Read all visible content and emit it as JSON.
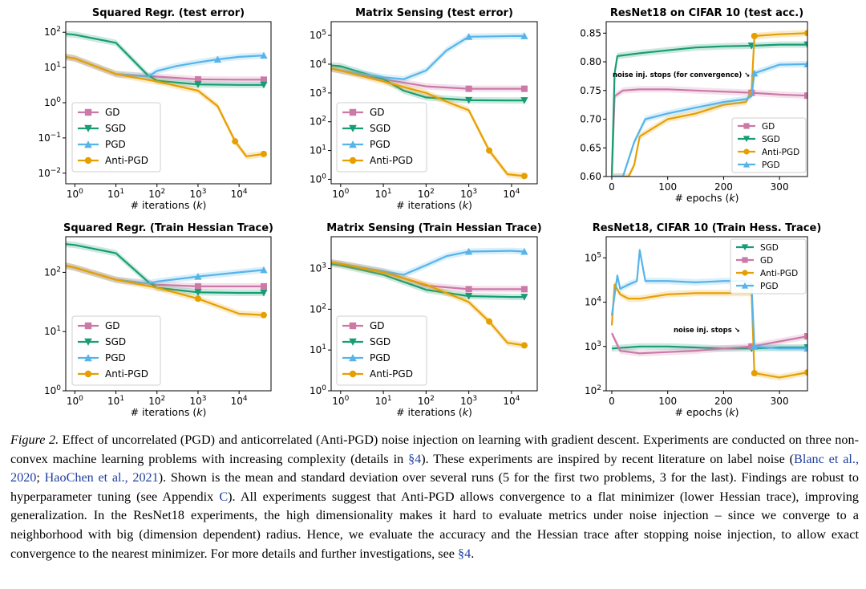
{
  "colors": {
    "GD": "#cc79a7",
    "SGD": "#179c73",
    "PGD": "#56b4e9",
    "Anti-PGD": "#e69f00"
  },
  "legend_labels": {
    "GD": "GD",
    "SGD": "SGD",
    "PGD": "PGD",
    "Anti-PGD": "Anti-PGD"
  },
  "chart_data": [
    {
      "id": "p1",
      "type": "line",
      "title": "Squared Regr. (test error)",
      "xlabel": "# iterations (k)",
      "yscale": "log",
      "xscale": "log",
      "xlim": [
        0.6,
        60000
      ],
      "ylim": [
        0.005,
        200
      ],
      "xticks": [
        "10^0",
        "10^1",
        "10^2",
        "10^3",
        "10^4"
      ],
      "yticks": [
        "10^-2",
        "10^-1",
        "10^0",
        "10^1",
        "10^2"
      ],
      "legend": [
        "GD",
        "SGD",
        "PGD",
        "Anti-PGD"
      ],
      "legend_pos": "lower-left",
      "series": [
        {
          "name": "GD",
          "x": [
            0.6,
            1,
            10,
            100,
            1000,
            10000,
            40000
          ],
          "y": [
            20,
            18,
            6.5,
            5.5,
            4.6,
            4.5,
            4.5
          ]
        },
        {
          "name": "SGD",
          "x": [
            0.6,
            1,
            10,
            60,
            100,
            1000,
            10000,
            40000
          ],
          "y": [
            90,
            85,
            50,
            6,
            4.2,
            3.3,
            3.2,
            3.2
          ]
        },
        {
          "name": "PGD",
          "x": [
            0.6,
            1,
            10,
            60,
            100,
            300,
            1000,
            3000,
            10000,
            40000
          ],
          "y": [
            20,
            18,
            6.5,
            5.5,
            8,
            11,
            14,
            17,
            20,
            22
          ]
        },
        {
          "name": "Anti-PGD",
          "x": [
            0.6,
            1,
            10,
            100,
            1000,
            3000,
            8000,
            15000,
            40000
          ],
          "y": [
            20,
            18,
            6.5,
            4,
            2.2,
            0.8,
            0.08,
            0.03,
            0.035
          ]
        }
      ]
    },
    {
      "id": "p2",
      "type": "line",
      "title": "Matrix Sensing (test error)",
      "xlabel": "# iterations (k)",
      "yscale": "log",
      "xscale": "log",
      "xlim": [
        0.6,
        40000
      ],
      "ylim": [
        0.7,
        300000
      ],
      "xticks": [
        "10^0",
        "10^1",
        "10^2",
        "10^3",
        "10^4"
      ],
      "yticks": [
        "10^0",
        "10^1",
        "10^2",
        "10^3",
        "10^4",
        "10^5"
      ],
      "legend": [
        "GD",
        "SGD",
        "PGD",
        "Anti-PGD"
      ],
      "legend_pos": "lower-left",
      "series": [
        {
          "name": "GD",
          "x": [
            0.6,
            1,
            10,
            100,
            1000,
            10000,
            20000
          ],
          "y": [
            7000,
            6000,
            3000,
            1700,
            1400,
            1400,
            1400
          ]
        },
        {
          "name": "SGD",
          "x": [
            0.6,
            1,
            10,
            30,
            100,
            1000,
            10000,
            20000
          ],
          "y": [
            9000,
            8500,
            3000,
            1200,
            700,
            560,
            550,
            550
          ]
        },
        {
          "name": "PGD",
          "x": [
            0.6,
            1,
            10,
            30,
            100,
            300,
            1000,
            10000,
            20000
          ],
          "y": [
            7000,
            6000,
            3500,
            3000,
            6000,
            30000,
            90000,
            95000,
            95000
          ]
        },
        {
          "name": "Anti-PGD",
          "x": [
            0.6,
            1,
            10,
            100,
            300,
            1000,
            3000,
            8000,
            20000
          ],
          "y": [
            7000,
            6000,
            2500,
            1000,
            500,
            250,
            10,
            1.5,
            1.3
          ]
        }
      ]
    },
    {
      "id": "p3",
      "type": "line",
      "title": "ResNet18 on CIFAR 10 (test acc.)",
      "xlabel": "# epochs (k)",
      "yscale": "linear",
      "xlim": [
        -10,
        350
      ],
      "ylim": [
        0.6,
        0.87
      ],
      "xticks": [
        "0",
        "100",
        "200",
        "300"
      ],
      "yticks": [
        "0.60",
        "0.65",
        "0.70",
        "0.75",
        "0.80",
        "0.85"
      ],
      "legend": [
        "GD",
        "SGD",
        "Anti-PGD",
        "PGD"
      ],
      "legend_pos": "lower-right",
      "annotation": "noise inj. stops (for convergence) ↘",
      "series": [
        {
          "name": "GD",
          "x": [
            0,
            5,
            20,
            50,
            100,
            150,
            200,
            250,
            300,
            350
          ],
          "y": [
            0.6,
            0.74,
            0.75,
            0.752,
            0.752,
            0.75,
            0.748,
            0.746,
            0.743,
            0.741
          ]
        },
        {
          "name": "SGD",
          "x": [
            0,
            5,
            10,
            50,
            100,
            150,
            200,
            250,
            300,
            350
          ],
          "y": [
            0.6,
            0.78,
            0.81,
            0.815,
            0.82,
            0.825,
            0.827,
            0.828,
            0.83,
            0.83
          ]
        },
        {
          "name": "Anti-PGD",
          "x": [
            0,
            30,
            40,
            50,
            100,
            150,
            200,
            240,
            250,
            255,
            300,
            350
          ],
          "y": [
            0.6,
            0.6,
            0.62,
            0.67,
            0.7,
            0.71,
            0.725,
            0.73,
            0.75,
            0.845,
            0.848,
            0.85
          ]
        },
        {
          "name": "PGD",
          "x": [
            0,
            20,
            40,
            60,
            100,
            150,
            200,
            240,
            250,
            255,
            300,
            350
          ],
          "y": [
            0.6,
            0.6,
            0.66,
            0.7,
            0.71,
            0.72,
            0.73,
            0.735,
            0.74,
            0.78,
            0.795,
            0.796
          ]
        }
      ]
    },
    {
      "id": "p4",
      "type": "line",
      "title": "Squared Regr. (Train Hessian Trace)",
      "xlabel": "# iterations (k)",
      "yscale": "log",
      "xscale": "log",
      "xlim": [
        0.6,
        60000
      ],
      "ylim": [
        1,
        400
      ],
      "xticks": [
        "10^0",
        "10^1",
        "10^2",
        "10^3",
        "10^4"
      ],
      "yticks": [
        "10^0",
        "10^1",
        "10^2"
      ],
      "legend": [
        "GD",
        "SGD",
        "PGD",
        "Anti-PGD"
      ],
      "legend_pos": "lower-left",
      "series": [
        {
          "name": "GD",
          "x": [
            0.6,
            1,
            10,
            100,
            1000,
            10000,
            40000
          ],
          "y": [
            130,
            120,
            75,
            62,
            58,
            58,
            58
          ]
        },
        {
          "name": "SGD",
          "x": [
            0.6,
            1,
            10,
            60,
            100,
            1000,
            10000,
            40000
          ],
          "y": [
            300,
            290,
            210,
            70,
            55,
            46,
            45,
            45
          ]
        },
        {
          "name": "PGD",
          "x": [
            0.6,
            1,
            10,
            60,
            100,
            1000,
            10000,
            40000
          ],
          "y": [
            130,
            120,
            75,
            65,
            70,
            85,
            100,
            110
          ]
        },
        {
          "name": "Anti-PGD",
          "x": [
            0.6,
            1,
            10,
            100,
            1000,
            10000,
            40000
          ],
          "y": [
            130,
            120,
            75,
            55,
            36,
            20,
            19
          ]
        }
      ]
    },
    {
      "id": "p5",
      "type": "line",
      "title": "Matrix Sensing (Train Hessian Trace)",
      "xlabel": "# iterations (k)",
      "yscale": "log",
      "xscale": "log",
      "xlim": [
        0.6,
        40000
      ],
      "ylim": [
        1,
        6000
      ],
      "xticks": [
        "10^0",
        "10^1",
        "10^2",
        "10^3",
        "10^4"
      ],
      "yticks": [
        "10^0",
        "10^1",
        "10^2",
        "10^3"
      ],
      "legend": [
        "GD",
        "SGD",
        "PGD",
        "Anti-PGD"
      ],
      "legend_pos": "lower-left",
      "series": [
        {
          "name": "GD",
          "x": [
            0.6,
            1,
            10,
            100,
            1000,
            10000,
            20000
          ],
          "y": [
            1400,
            1300,
            850,
            380,
            310,
            310,
            310
          ]
        },
        {
          "name": "SGD",
          "x": [
            0.6,
            1,
            10,
            100,
            1000,
            10000,
            20000
          ],
          "y": [
            1300,
            1200,
            700,
            300,
            210,
            200,
            200
          ]
        },
        {
          "name": "PGD",
          "x": [
            0.6,
            1,
            10,
            30,
            100,
            300,
            1000,
            10000,
            20000
          ],
          "y": [
            1400,
            1300,
            850,
            700,
            1200,
            2000,
            2600,
            2700,
            2600
          ]
        },
        {
          "name": "Anti-PGD",
          "x": [
            0.6,
            1,
            10,
            100,
            300,
            1000,
            3000,
            8000,
            20000
          ],
          "y": [
            1400,
            1300,
            800,
            400,
            250,
            150,
            50,
            15,
            13
          ]
        }
      ]
    },
    {
      "id": "p6",
      "type": "line",
      "title": "ResNet18, CIFAR 10 (Train Hess. Trace)",
      "xlabel": "# epochs (k)",
      "yscale": "log",
      "xlim": [
        -10,
        350
      ],
      "ylim": [
        100,
        300000
      ],
      "xticks": [
        "0",
        "100",
        "200",
        "300"
      ],
      "yticks": [
        "10^2",
        "10^3",
        "10^4",
        "10^5"
      ],
      "legend": [
        "SGD",
        "GD",
        "Anti-PGD",
        "PGD"
      ],
      "legend_pos": "top-right",
      "annotation": "noise inj. stops ↘",
      "series": [
        {
          "name": "SGD",
          "x": [
            0,
            50,
            100,
            150,
            200,
            250,
            300,
            350
          ],
          "y": [
            900,
            1000,
            1000,
            950,
            900,
            900,
            950,
            950
          ]
        },
        {
          "name": "GD",
          "x": [
            0,
            15,
            50,
            100,
            150,
            200,
            250,
            300,
            350
          ],
          "y": [
            2000,
            800,
            700,
            750,
            800,
            900,
            1000,
            1300,
            1700
          ]
        },
        {
          "name": "Anti-PGD",
          "x": [
            0,
            5,
            15,
            30,
            50,
            100,
            150,
            200,
            240,
            250,
            255,
            300,
            350
          ],
          "y": [
            3000,
            25000,
            15000,
            12000,
            12000,
            15000,
            16000,
            16000,
            16000,
            16000,
            250,
            200,
            260
          ]
        },
        {
          "name": "PGD",
          "x": [
            0,
            10,
            15,
            30,
            45,
            50,
            60,
            100,
            150,
            200,
            240,
            250,
            255,
            300,
            350
          ],
          "y": [
            5000,
            40000,
            20000,
            25000,
            30000,
            150000,
            30000,
            30000,
            28000,
            30000,
            30000,
            25000,
            1000,
            900,
            900
          ]
        }
      ]
    }
  ],
  "caption": {
    "label": "Figure 2.",
    "t1": " Effect of uncorrelated (PGD) and anticorrelated (Anti-PGD) noise injection on learning with gradient descent. Experiments are conducted on three non-convex machine learning problems with increasing complexity (details in ",
    "ref1": "§4",
    "t2": "). These experiments are inspired by recent literature on label noise (",
    "cite1": "Blanc et al., 2020",
    "t3": "; ",
    "cite2": "HaoChen et al., 2021",
    "t4": "). Shown is the mean and standard deviation over several runs (5 for the first two problems, 3 for the last). Findings are robust to hyperparameter tuning (see Appendix ",
    "ref2": "C",
    "t5": "). All experiments suggest that Anti-PGD allows convergence to a flat minimizer (lower Hessian trace), improving generalization. In the ResNet18 experiments, the high dimensionality makes it hard to evaluate metrics under noise injection – since we converge to a neighborhood with big (dimension dependent) radius. Hence, we evaluate the accuracy and the Hessian trace after stopping noise injection, to allow exact convergence to the nearest minimizer. For more details and further investigations, see ",
    "ref3": "§4",
    "t6": "."
  }
}
